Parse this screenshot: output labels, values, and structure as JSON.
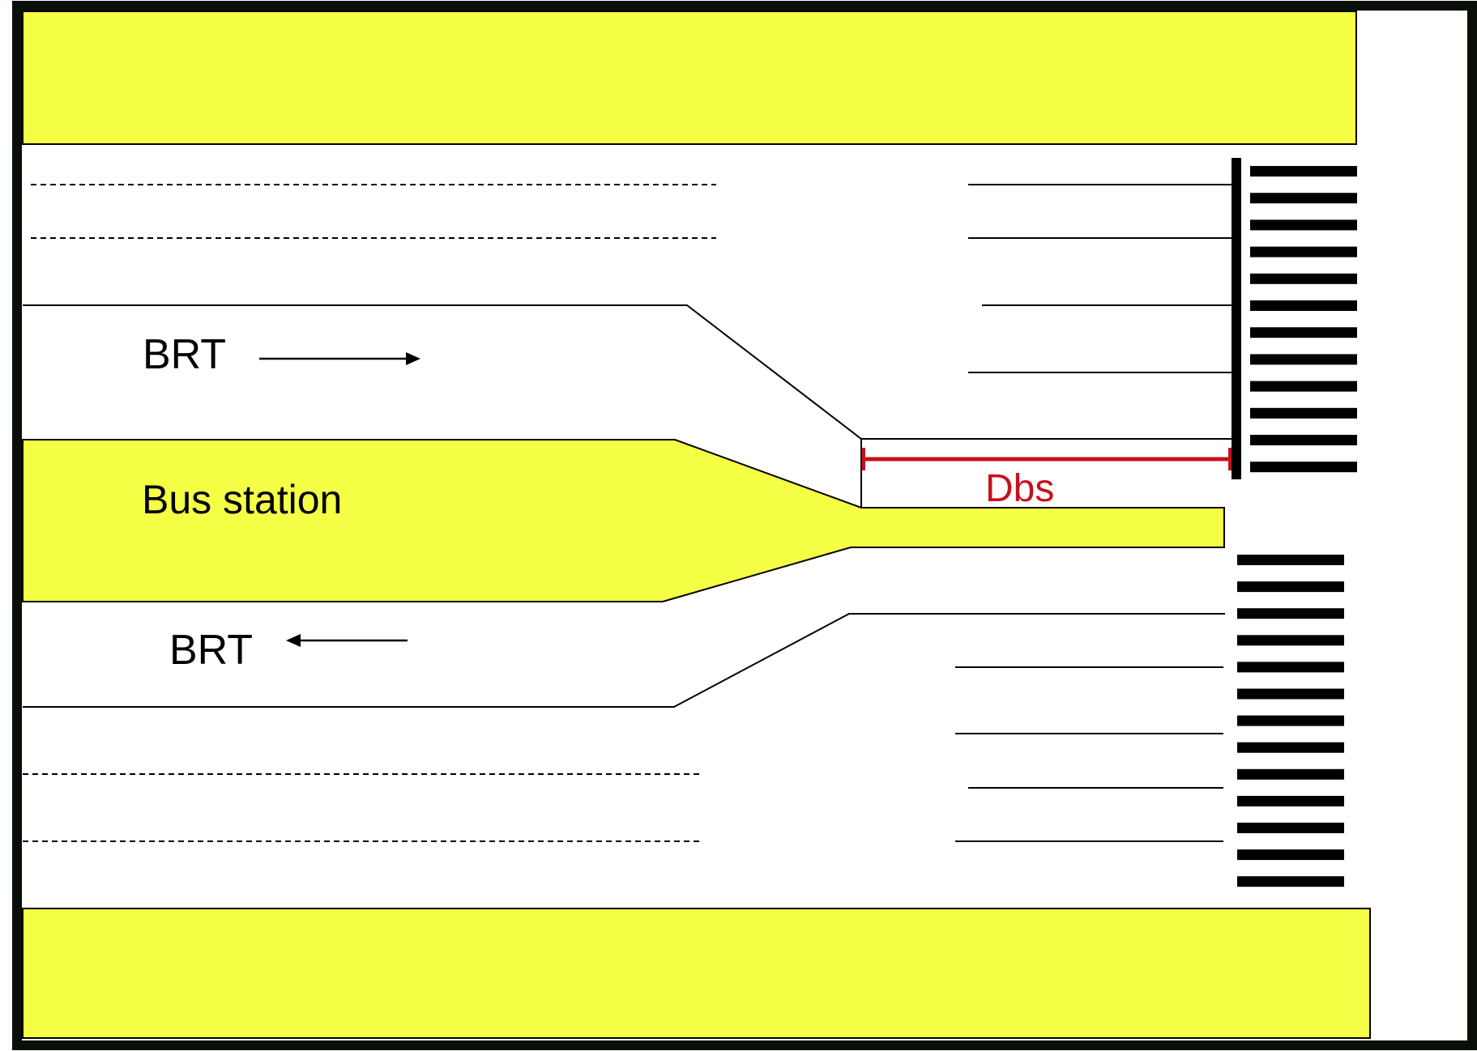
{
  "labels": {
    "brt_eastbound": "BRT",
    "brt_westbound": "BRT",
    "bus_station": "Bus station",
    "dimension": "Dbs"
  },
  "colors": {
    "island_fill": "#F5FF46",
    "line": "#000000",
    "frame": "#0A0F0A",
    "dimension": "#C8101E",
    "background": "#FFFFFF"
  }
}
